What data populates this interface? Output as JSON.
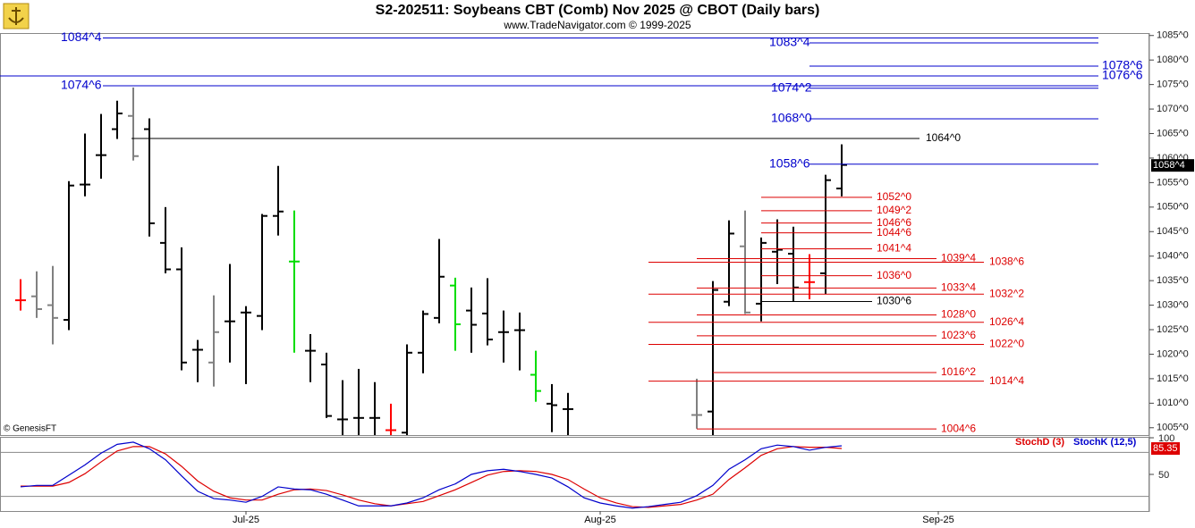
{
  "chart_data": [
    {
      "type": "ohlc",
      "title": "S2-202511:  Soybeans CBT (Comb) Nov 2025 @ CBOT  (Daily bars)",
      "subtitle": "www.TradeNavigator.com © 1999-2025",
      "annotation": "© GenesisFT",
      "categories": [
        null,
        null,
        null,
        null,
        null,
        null,
        null,
        null,
        null,
        null,
        null,
        null,
        null,
        null,
        "Jul-25",
        null,
        null,
        null,
        null,
        null,
        null,
        null,
        null,
        null,
        null,
        null,
        null,
        null,
        null,
        null,
        null,
        null,
        null,
        null,
        null,
        null,
        "Aug-25",
        null,
        null,
        null,
        null,
        null,
        null,
        null,
        null,
        null,
        null,
        null,
        null,
        null,
        null,
        null,
        null,
        null,
        null,
        null,
        null,
        "Sep-25",
        null,
        null,
        null,
        null,
        null,
        null,
        null,
        null,
        null,
        null,
        null,
        null,
        null
      ],
      "high": [
        1035.3,
        1036.9,
        1038,
        1055.3,
        1065,
        1069,
        1071.7,
        1074.4,
        1068.1,
        1050,
        1041.8,
        1022.9,
        1032,
        1038.4,
        1029.8,
        1048.6,
        1058.4,
        1049.3,
        1024.1,
        1020.3,
        1014.7,
        1017,
        1014.3,
        1009.9,
        1022,
        1028.9,
        1043.5,
        1035.6,
        1033.6,
        1035.5,
        1028.9,
        1028.5,
        1020.7,
        1013.9,
        1012.1,
        null,
        null,
        null,
        null,
        null,
        null,
        null,
        1015,
        1034.9,
        1047.3,
        1049.3,
        1043.8,
        1047.5,
        1046,
        1040.4,
        1056.6,
        1062.8,
        null,
        null,
        null,
        null,
        null,
        null,
        null,
        null,
        null,
        null,
        null,
        null,
        null,
        null,
        null,
        null,
        null,
        null,
        null
      ],
      "low": [
        1028.9,
        1027.4,
        1022,
        1024.9,
        1052.2,
        1055.8,
        1063.9,
        1059.5,
        1044,
        1036.5,
        1016.7,
        1014.3,
        1013.4,
        1018.3,
        1013.9,
        1024.9,
        1044.2,
        1020.3,
        1014.3,
        1007,
        1002,
        1002,
        1002,
        1002,
        1002,
        1016.1,
        1026.3,
        1020.7,
        1020.3,
        1021.8,
        1018.3,
        1016.7,
        1010.3,
        1004.1,
        1002,
        null,
        null,
        null,
        null,
        null,
        null,
        null,
        1004.8,
        1002,
        1029.8,
        1028.2,
        1026.7,
        1034.3,
        1030.7,
        1031.2,
        1032.2,
        1052.2,
        null,
        null,
        null,
        null,
        null,
        null,
        null,
        null,
        null,
        null,
        null,
        null,
        null,
        null,
        null,
        null,
        null,
        null,
        null
      ],
      "open": [
        1031,
        1031.8,
        1030,
        1027,
        1054.6,
        1060.6,
        1065.9,
        1068.6,
        1065.9,
        1042.7,
        1037.3,
        1020.9,
        1018.3,
        1026.7,
        1028.5,
        1027.8,
        1048.2,
        1038.9,
        1020.7,
        1017.9,
        1006.7,
        1007,
        1007,
        1004.5,
        1004,
        1020.3,
        1027.4,
        1034,
        1028.9,
        1028.3,
        1024.5,
        1024.9,
        1015.8,
        1009.9,
        1008.8,
        null,
        null,
        null,
        null,
        null,
        null,
        null,
        1007.6,
        1008.3,
        1030.7,
        1042,
        1030.3,
        1040.9,
        1040.5,
        1034.7,
        1036.5,
        1053.8,
        null,
        null,
        null,
        null,
        null,
        null,
        null,
        null,
        null,
        null,
        null,
        null,
        null,
        null,
        null,
        null,
        null,
        null,
        null
      ],
      "close": [
        1031,
        1029.2,
        1027.4,
        1054.4,
        1054.6,
        1060.6,
        1069.1,
        1060.4,
        1046.7,
        1037.3,
        1018.3,
        1020.9,
        1024.5,
        1026.7,
        1028.5,
        1048.2,
        1049.1,
        1038.9,
        1020.7,
        1007.4,
        1006.7,
        1007,
        1007,
        1004.5,
        1020.3,
        1028.2,
        1035.8,
        1026.1,
        1026,
        1023,
        1024.5,
        1024.9,
        1012.5,
        1009.6,
        1008.8,
        null,
        null,
        null,
        null,
        null,
        null,
        null,
        1007.6,
        1033.1,
        1044.6,
        1028.5,
        1042.7,
        1041.3,
        1033.6,
        1034.7,
        1055.5,
        1058.6,
        null,
        null,
        null,
        null,
        null,
        null,
        null,
        null,
        null,
        null,
        null,
        null,
        null,
        null,
        null,
        null,
        null,
        null,
        null
      ],
      "colors": [
        "#ff0000",
        "#808080",
        "#808080",
        "#000000",
        "#000000",
        "#000000",
        "#000000",
        "#808080",
        "#000000",
        "#000000",
        "#000000",
        "#000000",
        "#808080",
        "#000000",
        "#000000",
        "#000000",
        "#000000",
        "#00dd00",
        "#000000",
        "#000000",
        "#000000",
        "#000000",
        "#000000",
        "#ff0000",
        "#000000",
        "#000000",
        "#000000",
        "#00dd00",
        "#000000",
        "#000000",
        "#000000",
        "#000000",
        "#00dd00",
        "#000000",
        "#000000",
        null,
        null,
        null,
        null,
        null,
        null,
        null,
        "#808080",
        "#000000",
        "#000000",
        "#808080",
        "#000000",
        "#000000",
        "#000000",
        "#ff0000",
        "#000000",
        "#000000",
        null,
        null,
        null,
        null,
        null,
        null,
        null,
        null,
        null,
        null,
        null,
        null,
        null,
        null,
        null,
        null,
        null,
        null,
        null
      ],
      "ylim": [
        1003.5,
        1085.5
      ],
      "yticks": [
        {
          "value": 1005,
          "label": "1005^0"
        },
        {
          "value": 1010,
          "label": "1010^0"
        },
        {
          "value": 1015,
          "label": "1015^0"
        },
        {
          "value": 1020,
          "label": "1020^0"
        },
        {
          "value": 1025,
          "label": "1025^0"
        },
        {
          "value": 1030,
          "label": "1030^0"
        },
        {
          "value": 1035,
          "label": "1035^0"
        },
        {
          "value": 1040,
          "label": "1040^0"
        },
        {
          "value": 1045,
          "label": "1045^0"
        },
        {
          "value": 1050,
          "label": "1050^0"
        },
        {
          "value": 1055,
          "label": "1055^0"
        },
        {
          "value": 1060,
          "label": "1060^0"
        },
        {
          "value": 1065,
          "label": "1065^0"
        },
        {
          "value": 1070,
          "label": "1070^0"
        },
        {
          "value": 1075,
          "label": "1075^0"
        },
        {
          "value": 1080,
          "label": "1080^0"
        },
        {
          "value": 1085,
          "label": "1085^0"
        }
      ],
      "levels": [
        {
          "value": 1084.5,
          "label": "1084^4",
          "color": "#0000cc"
        },
        {
          "value": 1083.5,
          "label": "1083^4",
          "color": "#0000cc"
        },
        {
          "value": 1078.75,
          "label": "1078^6",
          "color": "#0000cc"
        },
        {
          "value": 1076.75,
          "label": "1076^6",
          "color": "#0000cc"
        },
        {
          "value": 1074.75,
          "label": "1074^6",
          "color": "#0000cc"
        },
        {
          "value": 1074.25,
          "label": "1074^2",
          "color": "#0000cc"
        },
        {
          "value": 1068,
          "label": "1068^0",
          "color": "#0000cc"
        },
        {
          "value": 1064,
          "label": "1064^0",
          "color": "#000000"
        },
        {
          "value": 1058.75,
          "label": "1058^6",
          "color": "#0000cc"
        },
        {
          "value": 1052,
          "label": "1052^0",
          "color": "#dd0000"
        },
        {
          "value": 1049.25,
          "label": "1049^2",
          "color": "#dd0000"
        },
        {
          "value": 1046.75,
          "label": "1046^6",
          "color": "#dd0000"
        },
        {
          "value": 1044.75,
          "label": "1044^6",
          "color": "#dd0000"
        },
        {
          "value": 1041.5,
          "label": "1041^4",
          "color": "#dd0000"
        },
        {
          "value": 1039.5,
          "label": "1039^4",
          "color": "#dd0000"
        },
        {
          "value": 1038.75,
          "label": "1038^6",
          "color": "#dd0000"
        },
        {
          "value": 1036,
          "label": "1036^0",
          "color": "#dd0000"
        },
        {
          "value": 1033.5,
          "label": "1033^4",
          "color": "#dd0000"
        },
        {
          "value": 1032.25,
          "label": "1032^2",
          "color": "#dd0000"
        },
        {
          "value": 1030.75,
          "label": "1030^6",
          "color": "#000000"
        },
        {
          "value": 1028,
          "label": "1028^0",
          "color": "#dd0000"
        },
        {
          "value": 1026.5,
          "label": "1026^4",
          "color": "#dd0000"
        },
        {
          "value": 1023.75,
          "label": "1023^6",
          "color": "#dd0000"
        },
        {
          "value": 1022,
          "label": "1022^0",
          "color": "#dd0000"
        },
        {
          "value": 1016.25,
          "label": "1016^2",
          "color": "#dd0000"
        },
        {
          "value": 1014.5,
          "label": "1014^4",
          "color": "#dd0000"
        },
        {
          "value": 1004.75,
          "label": "1004^6",
          "color": "#dd0000"
        }
      ],
      "last": {
        "value": 1058.5,
        "label": "1058^4"
      }
    },
    {
      "type": "line",
      "series": [
        {
          "name": "StochD (3)",
          "color": "#dd0000",
          "values": [
            34,
            34,
            34,
            39,
            51,
            67,
            82,
            88,
            88,
            78,
            61,
            41,
            27,
            18,
            15,
            15,
            23,
            29,
            30,
            28,
            22,
            15,
            10,
            7,
            10,
            13,
            21,
            29,
            39,
            49,
            54,
            55,
            54,
            50,
            43,
            30,
            18,
            11,
            6,
            5,
            7,
            9,
            15,
            23,
            43,
            59,
            76,
            85,
            88,
            87,
            87,
            85.35,
            null,
            null,
            null,
            null,
            null,
            null,
            null,
            null,
            null,
            null,
            null,
            null,
            null,
            null,
            null,
            null,
            null,
            null,
            null
          ]
        },
        {
          "name": "StochK (12,5)",
          "color": "#0000cc",
          "values": [
            33,
            35,
            35,
            49,
            63,
            79,
            91,
            94,
            85,
            70,
            48,
            27,
            17,
            15,
            12,
            20,
            33,
            30,
            29,
            23,
            15,
            7,
            7,
            7,
            11,
            18,
            29,
            37,
            50,
            55,
            57,
            54,
            50,
            45,
            33,
            18,
            11,
            7,
            4,
            6,
            9,
            12,
            21,
            35,
            57,
            70,
            85,
            90,
            88,
            83,
            87,
            89,
            null,
            null,
            null,
            null,
            null,
            null,
            null,
            null,
            null,
            null,
            null,
            null,
            null,
            null,
            null,
            null,
            null,
            null,
            null
          ]
        }
      ],
      "ylim": [
        0,
        100
      ],
      "yticks": [
        50,
        100
      ],
      "guides": [
        80,
        20
      ]
    }
  ]
}
